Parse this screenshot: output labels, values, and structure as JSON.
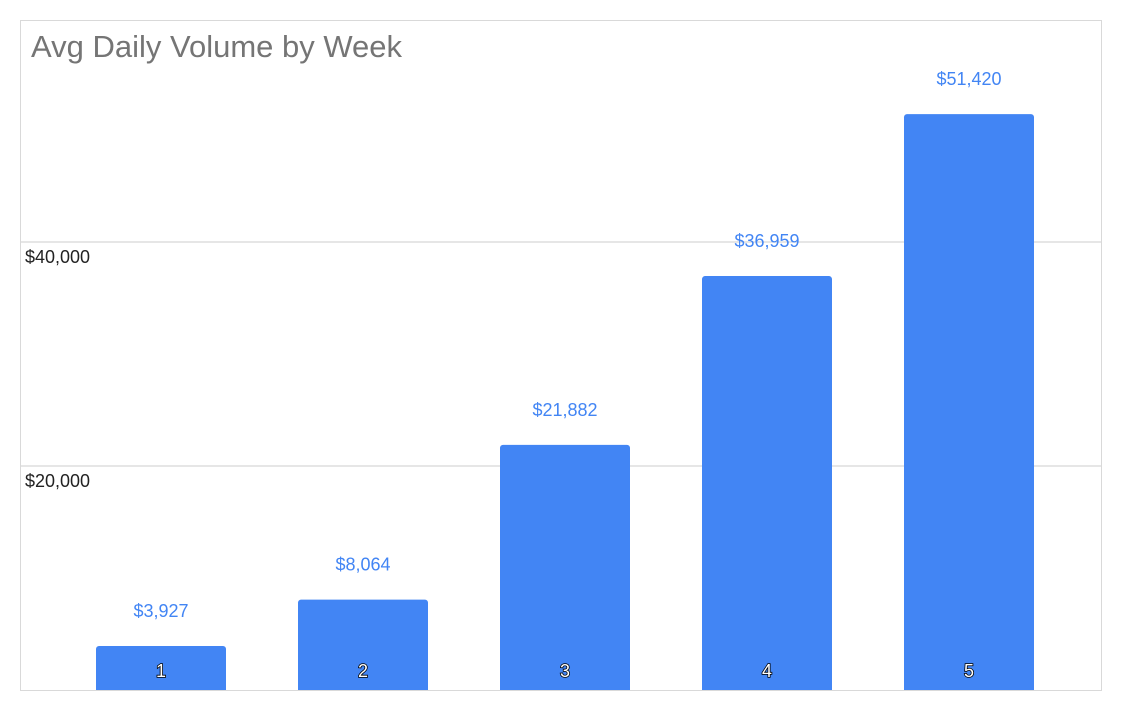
{
  "chart_data": {
    "type": "bar",
    "title": "Avg Daily Volume by Week",
    "xlabel": "",
    "ylabel": "",
    "categories": [
      "1",
      "2",
      "3",
      "4",
      "5"
    ],
    "values": [
      3927,
      8064,
      21882,
      36959,
      51420
    ],
    "value_labels": [
      "$3,927",
      "$8,064",
      "$21,882",
      "$36,959",
      "$51,420"
    ],
    "y_ticks": [
      20000,
      40000
    ],
    "y_tick_labels": [
      "$20,000",
      "$40,000"
    ],
    "ylim": [
      0,
      59000
    ],
    "grid": true,
    "legend": "none",
    "bar_color": "#4285f4",
    "value_label_color": "#4285f4",
    "category_label_position": "inside-bar-bottom"
  }
}
